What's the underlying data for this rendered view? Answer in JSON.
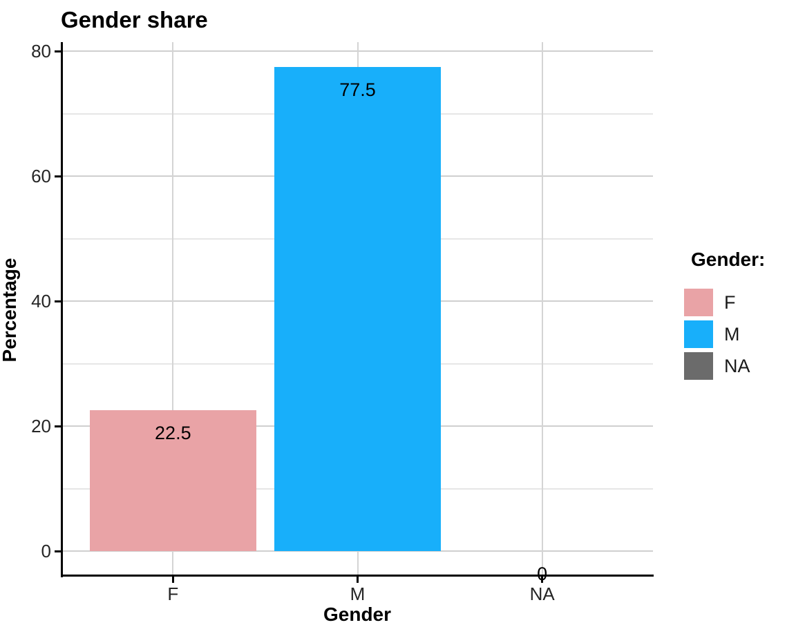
{
  "chart_data": {
    "type": "bar",
    "title": "Gender share",
    "xlabel": "Gender",
    "ylabel": "Percentage",
    "categories": [
      "F",
      "M",
      "NA"
    ],
    "values": [
      22.5,
      77.5,
      0
    ],
    "bar_labels": [
      "22.5",
      "77.5",
      "0"
    ],
    "bar_colors": [
      "#E9A3A6",
      "#18AFFA",
      "#6B6B6B"
    ],
    "ylim": [
      0,
      80
    ],
    "y_ticks": [
      0,
      20,
      40,
      60,
      80
    ],
    "y_minor_ticks": [
      10,
      30,
      50,
      70
    ],
    "grid": true,
    "legend": {
      "title": "Gender:",
      "position": "right",
      "items": [
        {
          "label": "F",
          "color": "#E9A3A6"
        },
        {
          "label": "M",
          "color": "#18AFFA"
        },
        {
          "label": "NA",
          "color": "#6B6B6B"
        }
      ]
    },
    "colors": {
      "bar_f": "#E9A3A6",
      "bar_m": "#18AFFA",
      "bar_na": "#6B6B6B",
      "axis_line": "#000000",
      "grid_major": "#CFCFCF",
      "grid_minor": "#E6E6E6",
      "tick_text": "#262626"
    }
  }
}
